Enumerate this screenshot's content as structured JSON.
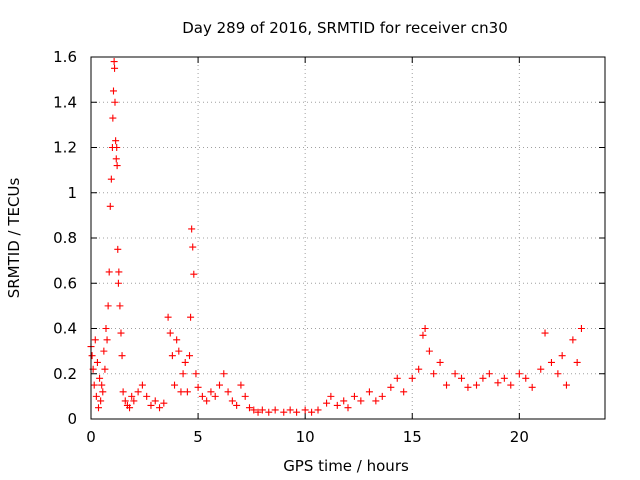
{
  "chart_data": {
    "type": "scatter",
    "title": "Day 289 of 2016, SRMTID for receiver cn30",
    "xlabel": "GPS time / hours",
    "ylabel": "SRMTID / TECUs",
    "xlim": [
      0,
      24
    ],
    "ylim": [
      0,
      1.6
    ],
    "xticks": [
      0,
      5,
      10,
      15,
      20
    ],
    "xtick_labels": [
      "0",
      "5",
      "10",
      "15",
      "20"
    ],
    "yticks": [
      0,
      0.2,
      0.4,
      0.6,
      0.8,
      1,
      1.2,
      1.4,
      1.6
    ],
    "ytick_labels": [
      "0",
      "0.2",
      "0.4",
      "0.6",
      "0.8",
      "1",
      "1.2",
      "1.4",
      "1.6"
    ],
    "grid": true,
    "marker": "plus",
    "color": "#ff0000",
    "series": [
      {
        "name": "cn30",
        "x": [
          0.0,
          0.05,
          0.1,
          0.15,
          0.2,
          0.25,
          0.3,
          0.35,
          0.4,
          0.45,
          0.5,
          0.55,
          0.6,
          0.65,
          0.7,
          0.75,
          0.8,
          0.85,
          0.9,
          0.95,
          1.0,
          1.02,
          1.05,
          1.08,
          1.1,
          1.12,
          1.15,
          1.18,
          1.2,
          1.22,
          1.25,
          1.28,
          1.3,
          1.35,
          1.4,
          1.45,
          1.5,
          1.6,
          1.7,
          1.8,
          1.9,
          2.0,
          2.2,
          2.4,
          2.6,
          2.8,
          3.0,
          3.2,
          3.4,
          3.6,
          3.7,
          3.8,
          3.9,
          4.0,
          4.1,
          4.2,
          4.3,
          4.4,
          4.5,
          4.6,
          4.65,
          4.7,
          4.75,
          4.8,
          4.9,
          5.0,
          5.2,
          5.4,
          5.6,
          5.8,
          6.0,
          6.2,
          6.4,
          6.6,
          6.8,
          7.0,
          7.2,
          7.4,
          7.6,
          7.8,
          8.0,
          8.3,
          8.6,
          9.0,
          9.3,
          9.6,
          10.0,
          10.3,
          10.6,
          11.0,
          11.2,
          11.5,
          11.8,
          12.0,
          12.3,
          12.6,
          13.0,
          13.3,
          13.6,
          14.0,
          14.3,
          14.6,
          15.0,
          15.3,
          15.5,
          15.6,
          15.8,
          16.0,
          16.3,
          16.6,
          17.0,
          17.3,
          17.6,
          18.0,
          18.3,
          18.6,
          19.0,
          19.3,
          19.6,
          20.0,
          20.3,
          20.6,
          21.0,
          21.2,
          21.5,
          21.8,
          22.0,
          22.2,
          22.5,
          22.7,
          22.9
        ],
        "y": [
          0.32,
          0.28,
          0.22,
          0.15,
          0.35,
          0.1,
          0.25,
          0.05,
          0.18,
          0.08,
          0.15,
          0.12,
          0.3,
          0.22,
          0.4,
          0.35,
          0.5,
          0.65,
          0.94,
          1.06,
          1.2,
          1.33,
          1.45,
          1.58,
          1.55,
          1.4,
          1.23,
          1.15,
          1.2,
          1.12,
          0.75,
          0.6,
          0.65,
          0.5,
          0.38,
          0.28,
          0.12,
          0.08,
          0.06,
          0.05,
          0.1,
          0.08,
          0.12,
          0.15,
          0.1,
          0.06,
          0.08,
          0.05,
          0.07,
          0.45,
          0.38,
          0.28,
          0.15,
          0.35,
          0.3,
          0.12,
          0.2,
          0.25,
          0.12,
          0.28,
          0.45,
          0.84,
          0.76,
          0.64,
          0.2,
          0.14,
          0.1,
          0.08,
          0.12,
          0.1,
          0.15,
          0.2,
          0.12,
          0.08,
          0.06,
          0.15,
          0.1,
          0.05,
          0.04,
          0.03,
          0.04,
          0.03,
          0.04,
          0.03,
          0.04,
          0.03,
          0.04,
          0.03,
          0.04,
          0.07,
          0.1,
          0.06,
          0.08,
          0.05,
          0.1,
          0.08,
          0.12,
          0.08,
          0.1,
          0.14,
          0.18,
          0.12,
          0.18,
          0.22,
          0.37,
          0.4,
          0.3,
          0.2,
          0.25,
          0.15,
          0.2,
          0.18,
          0.14,
          0.15,
          0.18,
          0.2,
          0.16,
          0.18,
          0.15,
          0.2,
          0.18,
          0.14,
          0.22,
          0.38,
          0.25,
          0.2,
          0.28,
          0.15,
          0.35,
          0.25,
          0.4
        ]
      }
    ]
  }
}
